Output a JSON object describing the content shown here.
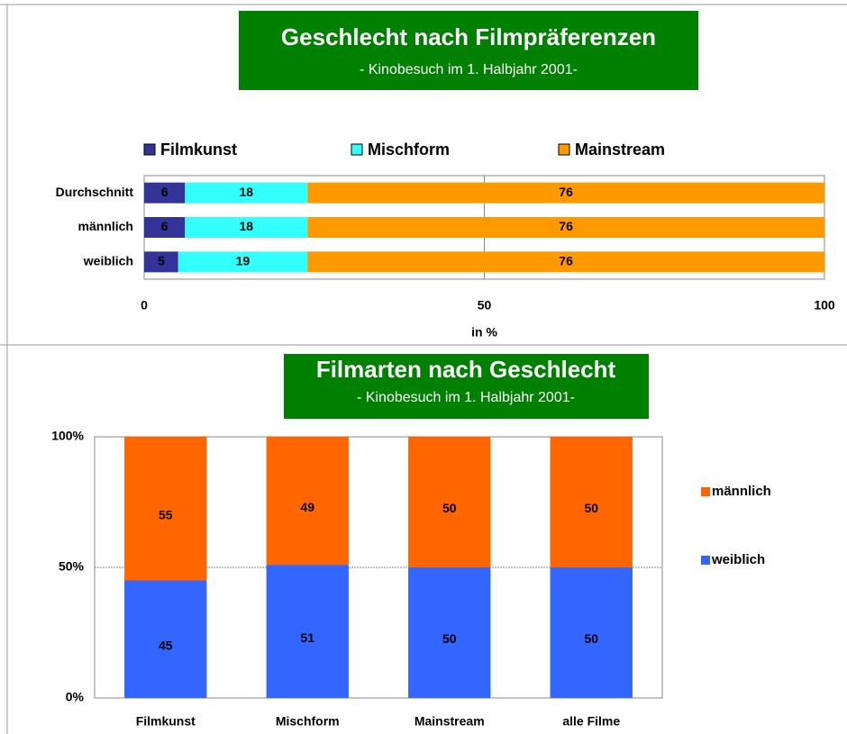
{
  "chart_data": [
    {
      "type": "hbar_stacked",
      "title": "Geschlecht nach Filmpräferenzen",
      "subtitle": "- Kinobesuch im 1. Halbjahr 2001-",
      "categories": [
        "Durchschnitt",
        "männlich",
        "weiblich"
      ],
      "series": [
        {
          "name": "Filmkunst",
          "color": "#333399",
          "values": [
            6,
            6,
            5
          ]
        },
        {
          "name": "Mischform",
          "color": "#33ffff",
          "values": [
            18,
            18,
            19
          ]
        },
        {
          "name": "Mainstream",
          "color": "#ff9900",
          "values": [
            76,
            76,
            76
          ]
        }
      ],
      "xlim": [
        0,
        100
      ],
      "xticks": [
        0,
        50,
        100
      ],
      "x_label": "in %",
      "grid": true,
      "legend": "top"
    },
    {
      "type": "bar_stacked",
      "title": "Filmarten nach Geschlecht",
      "subtitle": "- Kinobesuch im 1. Halbjahr 2001-",
      "categories": [
        "Filmkunst",
        "Mischform",
        "Mainstream",
        "alle Filme"
      ],
      "series": [
        {
          "name": "weiblich",
          "color": "#3366ff",
          "values": [
            45,
            51,
            50,
            50
          ]
        },
        {
          "name": "männlich",
          "color": "#ff6600",
          "values": [
            55,
            49,
            50,
            50
          ]
        }
      ],
      "ylim": [
        0,
        100
      ],
      "yticks": [
        {
          "value": 0,
          "label": "0%"
        },
        {
          "value": 50,
          "label": "50%"
        },
        {
          "value": 100,
          "label": "100%"
        }
      ],
      "grid": true,
      "legend": "right"
    }
  ]
}
